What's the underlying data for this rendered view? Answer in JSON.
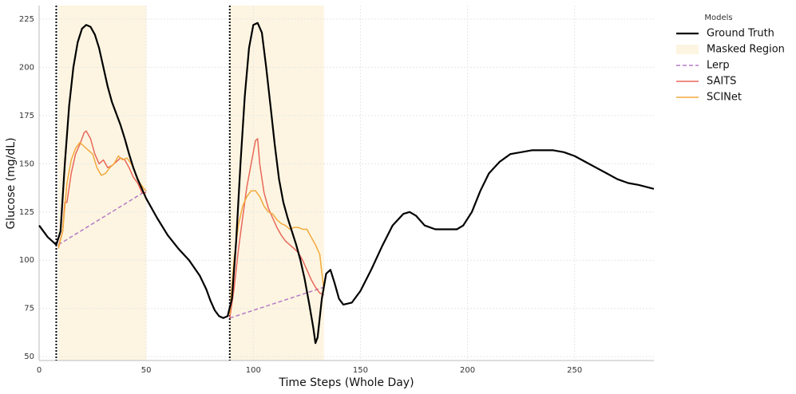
{
  "chart_data": {
    "type": "line",
    "xlabel": "Time Steps (Whole Day)",
    "ylabel": "Glucose (mg/dL)",
    "xlim": [
      0,
      287
    ],
    "ylim": [
      48,
      232
    ],
    "xticks": [
      0,
      50,
      100,
      150,
      200,
      250
    ],
    "yticks": [
      50,
      75,
      100,
      125,
      150,
      175,
      200,
      225
    ],
    "grid": true,
    "legend_title": "Models",
    "masked_region": {
      "name": "Masked Region",
      "color": "#fdf5e1",
      "spans": [
        [
          9,
          50
        ],
        [
          89,
          133
        ]
      ]
    },
    "vlines": [
      8,
      89
    ],
    "series": [
      {
        "name": "Ground Truth",
        "color": "#000000",
        "style": "solid",
        "width": 2.2,
        "x": [
          0,
          4,
          8,
          10,
          12,
          14,
          16,
          18,
          20,
          22,
          24,
          26,
          28,
          30,
          32,
          34,
          36,
          38,
          40,
          42,
          44,
          46,
          48,
          50,
          55,
          60,
          65,
          70,
          75,
          78,
          80,
          82,
          84,
          86,
          88,
          90,
          92,
          94,
          96,
          98,
          100,
          102,
          104,
          106,
          108,
          110,
          112,
          114,
          116,
          118,
          120,
          122,
          124,
          126,
          128,
          129,
          130,
          132,
          134,
          136,
          138,
          140,
          142,
          146,
          150,
          155,
          160,
          165,
          170,
          173,
          176,
          180,
          185,
          190,
          195,
          198,
          202,
          206,
          210,
          215,
          220,
          225,
          230,
          240,
          245,
          250,
          255,
          260,
          265,
          270,
          275,
          280,
          287
        ],
        "values": [
          118,
          112,
          108,
          115,
          150,
          180,
          200,
          213,
          220,
          222,
          221,
          217,
          210,
          200,
          190,
          182,
          176,
          170,
          163,
          155,
          148,
          142,
          137,
          132,
          122,
          113,
          106,
          100,
          92,
          85,
          79,
          74,
          71,
          70,
          71,
          80,
          110,
          150,
          185,
          210,
          222,
          223,
          218,
          200,
          180,
          160,
          142,
          130,
          122,
          115,
          108,
          100,
          90,
          78,
          65,
          57,
          60,
          80,
          93,
          95,
          88,
          80,
          77,
          78,
          84,
          95,
          107,
          118,
          124,
          125,
          123,
          118,
          116,
          116,
          116,
          118,
          125,
          136,
          145,
          151,
          155,
          156,
          157,
          157,
          156,
          154,
          151,
          148,
          145,
          142,
          140,
          139,
          137
        ]
      },
      {
        "name": "Lerp",
        "color": "#b57ac7",
        "style": "dashed",
        "width": 1.5,
        "x": [
          9,
          50,
          null,
          89,
          133
        ],
        "values": [
          108,
          136,
          null,
          70,
          86
        ]
      },
      {
        "name": "SAITS",
        "color": "#e8685a",
        "style": "solid",
        "width": 1.5,
        "x": [
          9,
          11,
          12,
          13,
          15,
          17,
          19,
          21,
          22,
          24,
          26,
          28,
          30,
          32,
          34,
          36,
          38,
          40,
          42,
          44,
          46,
          48,
          50,
          null,
          89,
          91,
          93,
          95,
          97,
          99,
          101,
          102,
          103,
          105,
          107,
          109,
          111,
          113,
          115,
          117,
          119,
          121,
          123,
          125,
          127,
          129,
          131,
          133
        ],
        "values": [
          107,
          115,
          130,
          130,
          145,
          155,
          160,
          166,
          167,
          163,
          155,
          150,
          152,
          148,
          149,
          151,
          153,
          152,
          148,
          143,
          140,
          135,
          135,
          null,
          70,
          85,
          105,
          122,
          138,
          150,
          162,
          163,
          150,
          135,
          127,
          122,
          117,
          113,
          110,
          108,
          106,
          104,
          100,
          95,
          90,
          86,
          83,
          82
        ]
      },
      {
        "name": "SCINet",
        "color": "#f2a93b",
        "style": "solid",
        "width": 1.5,
        "x": [
          9,
          11,
          13,
          15,
          17,
          19,
          21,
          23,
          25,
          27,
          29,
          31,
          33,
          35,
          37,
          39,
          41,
          43,
          45,
          47,
          49,
          50,
          null,
          89,
          91,
          93,
          95,
          97,
          99,
          101,
          103,
          105,
          107,
          109,
          111,
          113,
          115,
          117,
          119,
          121,
          123,
          125,
          127,
          129,
          131,
          133
        ],
        "values": [
          106,
          115,
          140,
          152,
          158,
          161,
          159,
          157,
          155,
          148,
          144,
          145,
          148,
          150,
          154,
          152,
          153,
          150,
          145,
          140,
          137,
          136,
          null,
          72,
          100,
          118,
          128,
          133,
          136,
          136,
          133,
          128,
          125,
          124,
          121,
          119,
          118,
          116,
          117,
          117,
          116,
          116,
          112,
          108,
          103,
          84
        ]
      }
    ]
  }
}
